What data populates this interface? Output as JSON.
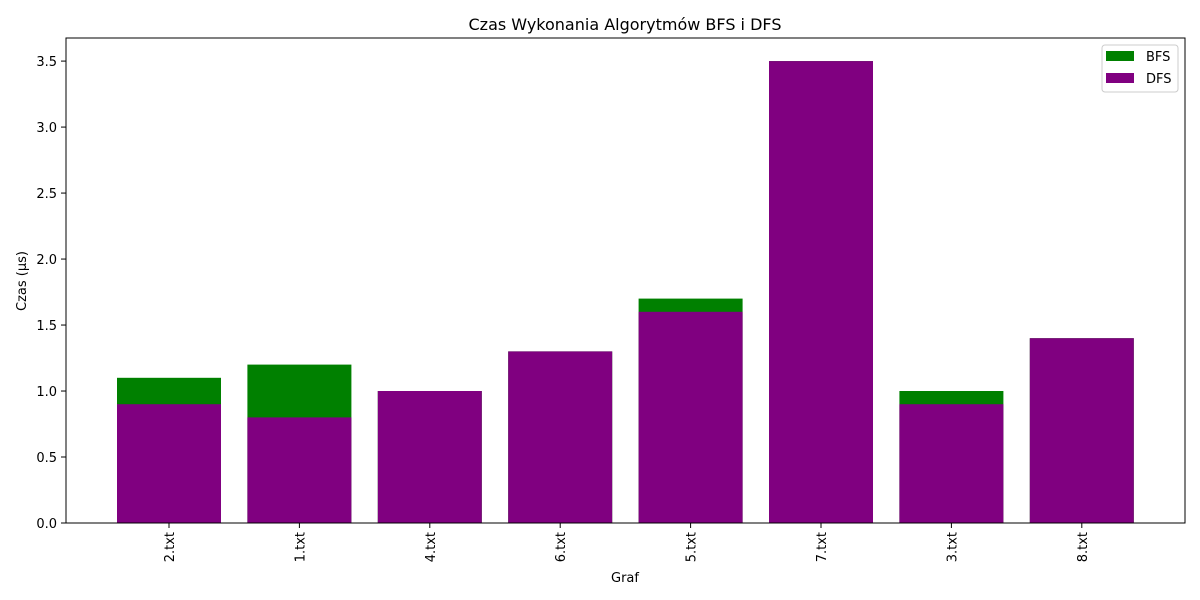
{
  "chart_data": {
    "type": "bar",
    "title": "Czas Wykonania Algorytmów BFS i DFS",
    "xlabel": "Graf",
    "ylabel": "Czas (µs)",
    "categories": [
      "2.txt",
      "1.txt",
      "4.txt",
      "6.txt",
      "5.txt",
      "7.txt",
      "3.txt",
      "8.txt"
    ],
    "series": [
      {
        "name": "BFS",
        "color": "#008000",
        "values": [
          1.1,
          1.2,
          1.0,
          1.3,
          1.7,
          3.5,
          1.0,
          1.4
        ]
      },
      {
        "name": "DFS",
        "color": "#800080",
        "values": [
          0.9,
          0.8,
          1.0,
          1.3,
          1.6,
          3.5,
          0.9,
          1.4
        ]
      }
    ],
    "ylim": [
      0,
      3.675
    ],
    "yticks": [
      "0.0",
      "0.5",
      "1.0",
      "1.5",
      "2.0",
      "2.5",
      "3.0",
      "3.5"
    ],
    "legend_position": "top-right",
    "overlay": true
  }
}
